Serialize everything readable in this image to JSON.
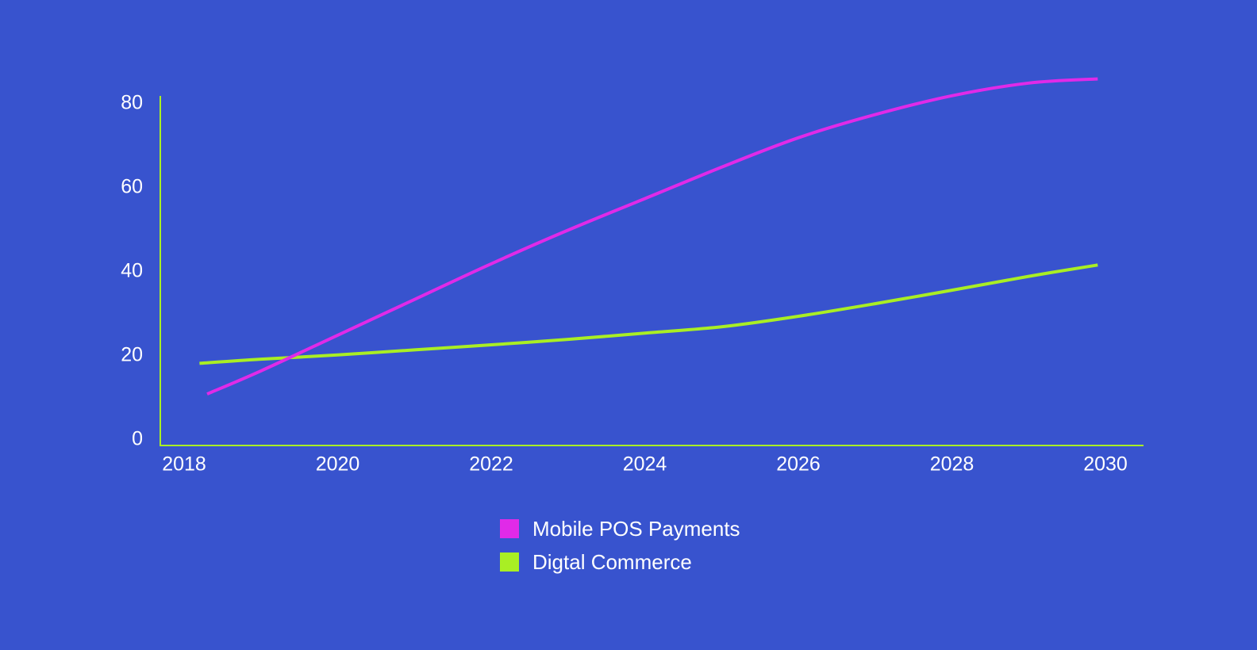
{
  "chart_data": {
    "type": "line",
    "title": "",
    "xlabel": "",
    "ylabel": "",
    "xlim": [
      2018,
      2030
    ],
    "ylim": [
      0,
      80
    ],
    "x_ticks": [
      "2018",
      "2020",
      "2022",
      "2024",
      "2026",
      "2028",
      "2030"
    ],
    "y_ticks": [
      "0",
      "20",
      "40",
      "60",
      "80"
    ],
    "grid": false,
    "legend_position": "bottom-center",
    "series": [
      {
        "name": "Mobile POS Payments",
        "color": "#E02AE8",
        "x": [
          2018.3,
          2019,
          2020,
          2021,
          2022,
          2023,
          2024,
          2025,
          2026,
          2027,
          2028,
          2029,
          2029.9
        ],
        "y": [
          11.5,
          17,
          25.5,
          34,
          42.5,
          50.5,
          58,
          65.5,
          72.5,
          78,
          82.5,
          85.5,
          86.5
        ]
      },
      {
        "name": "Digtal Commerce",
        "color": "#A9EE24",
        "x": [
          2018.2,
          2019,
          2020,
          2021,
          2022,
          2023,
          2024,
          2025,
          2026,
          2027,
          2028,
          2029,
          2029.9
        ],
        "y": [
          18.8,
          19.8,
          20.8,
          22,
          23.2,
          24.5,
          26,
          27.5,
          30,
          33,
          36.2,
          39.5,
          42.2
        ]
      }
    ]
  }
}
